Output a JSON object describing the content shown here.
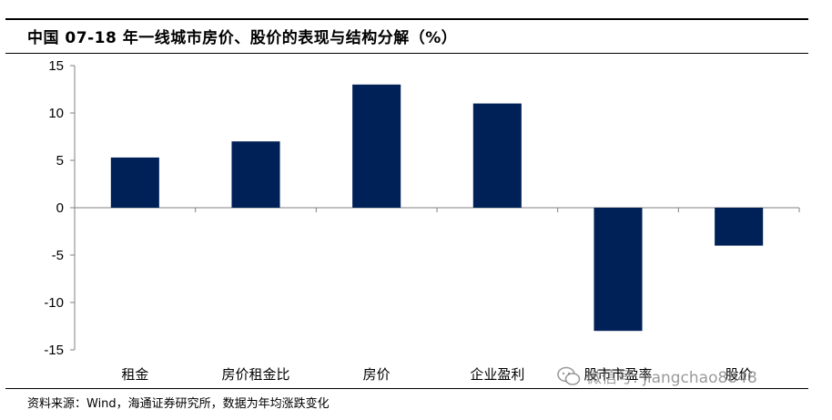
{
  "title": "中国 07-18 年一线城市房价、股价的表现与结构分解（%）",
  "source": "资料来源：Wind，海通证券研究所，数据为年均涨跌变化",
  "watermark": "微信号: jiangchao8848",
  "colors": {
    "bar": "#002157",
    "axis": "#808080"
  },
  "chart_data": {
    "type": "bar",
    "title": "中国 07-18 年一线城市房价、股价的表现与结构分解（%）",
    "xlabel": "",
    "ylabel": "",
    "categories": [
      "租金",
      "房价租金比",
      "房价",
      "企业盈利",
      "股市市盈率",
      "股价"
    ],
    "category_labels": [
      "租金",
      "房价租金比",
      "房价",
      "企业盈利",
      "股市市盈率",
      "股价"
    ],
    "values": [
      5.3,
      7.0,
      13.0,
      11.0,
      -13.0,
      -4.0
    ],
    "ylim": [
      -15,
      15
    ],
    "yticks": [
      15,
      10,
      5,
      0,
      -5,
      -10,
      -15
    ],
    "grid": false,
    "legend": "none"
  }
}
